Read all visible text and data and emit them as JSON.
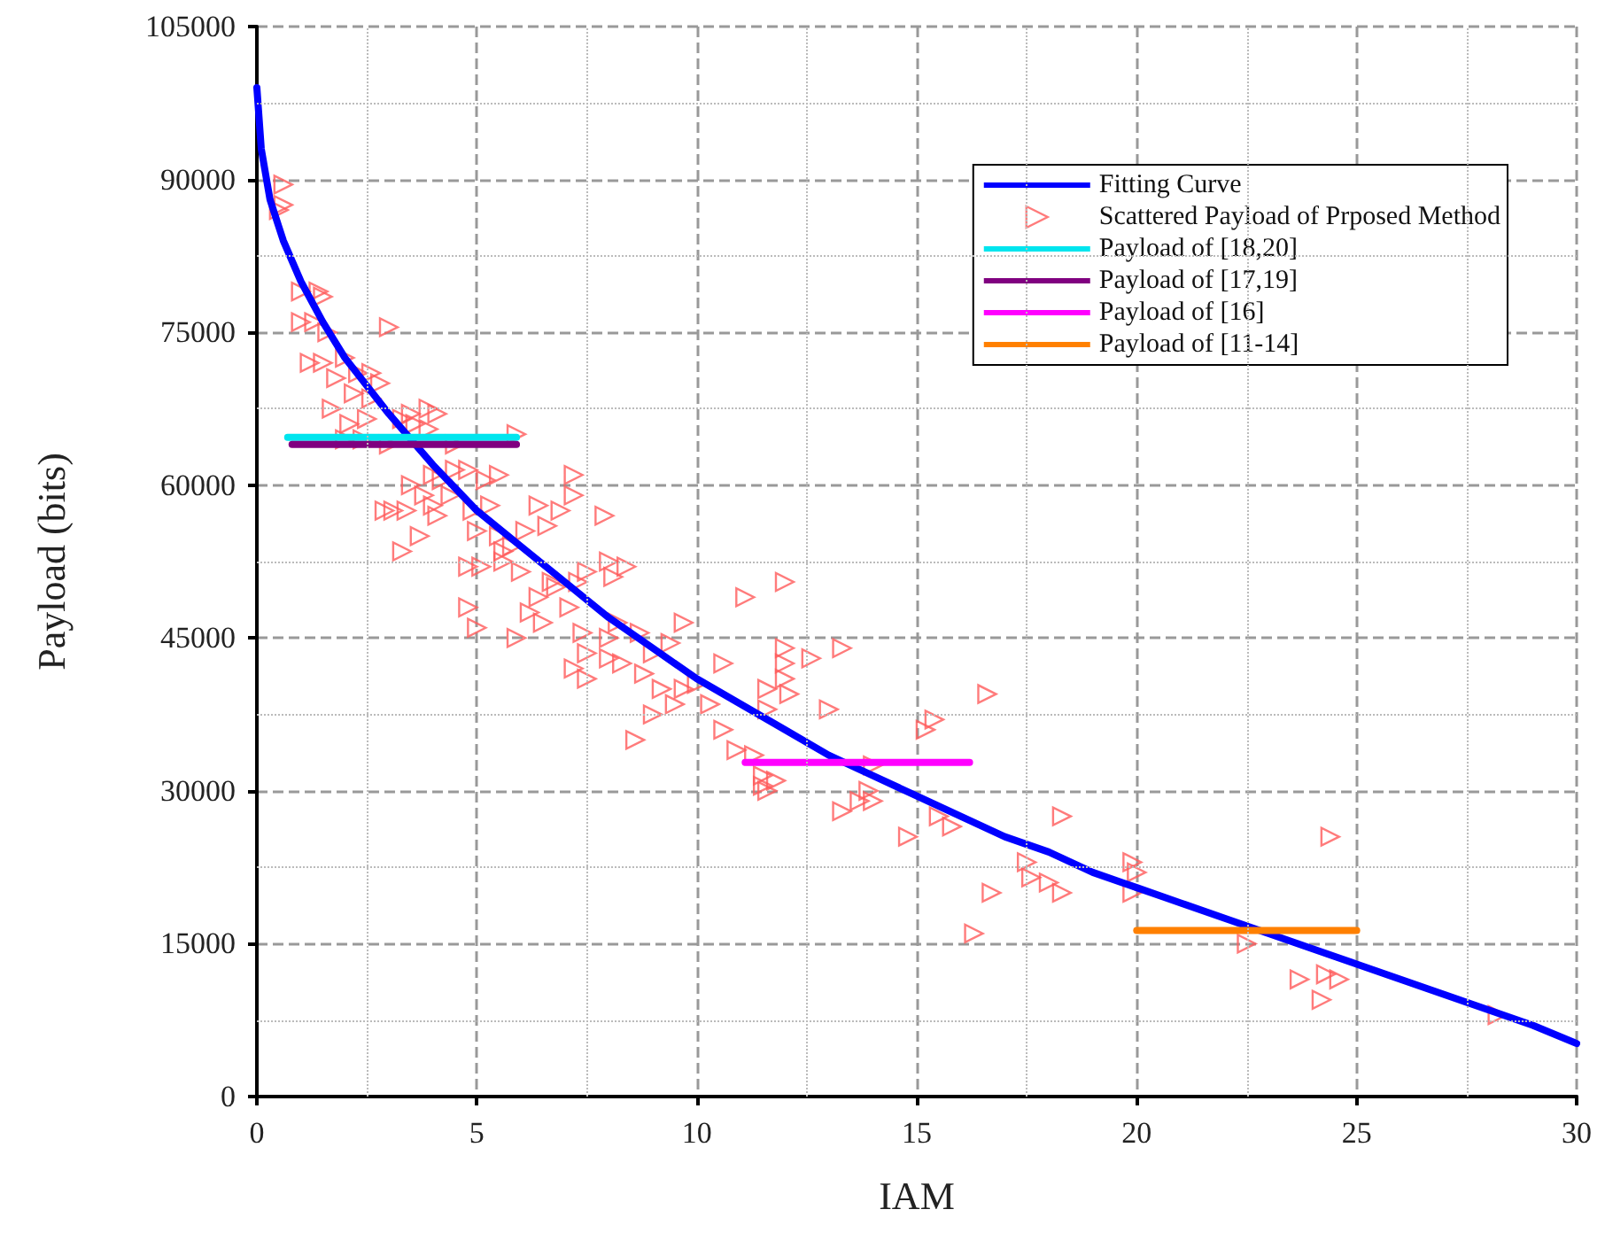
{
  "chart_data": {
    "type": "scatter",
    "xlabel": "IAM",
    "ylabel": "Payload (bits)",
    "xlim": [
      0,
      30
    ],
    "xticks": [
      0,
      5,
      10,
      15,
      20,
      25,
      30
    ],
    "ylim": [
      0,
      105000
    ],
    "yticks": [
      0,
      15000,
      30000,
      45000,
      60000,
      75000,
      90000,
      105000
    ],
    "grid": true,
    "legend": "top right",
    "series": [
      {
        "name": "Fitting Curve",
        "type": "line",
        "color": "#0000ff",
        "marker": "none",
        "line_style": "solid",
        "x": [
          0,
          0.1,
          0.3,
          0.6,
          1,
          1.5,
          2,
          3,
          4,
          5,
          6,
          7,
          8,
          9,
          10,
          11,
          12,
          13,
          14,
          15,
          16,
          17,
          18,
          19,
          20,
          21,
          22,
          23,
          24,
          25,
          26,
          27,
          28,
          29,
          30
        ],
        "values": [
          99000,
          93000,
          88000,
          84000,
          80000,
          76000,
          72500,
          67000,
          62000,
          57500,
          54000,
          50500,
          47000,
          44000,
          41000,
          38500,
          36000,
          33500,
          31500,
          29500,
          27500,
          25500,
          24000,
          22000,
          20500,
          19000,
          17500,
          16000,
          14500,
          13000,
          11500,
          10000,
          8500,
          7000,
          5200
        ]
      },
      {
        "name": "Scattered Payload of Prposed Method",
        "color": "#ff5a5a",
        "marker": "triangle",
        "x": [
          0.6,
          0.6,
          0.5,
          1.0,
          1.4,
          1.5,
          1.0,
          1.3,
          1.6,
          1.2,
          1.5,
          2.0,
          1.8,
          2.3,
          2.6,
          3.0,
          2.2,
          2.6,
          1.7,
          2.1,
          2.5,
          2.8,
          3.3,
          3.5,
          3.9,
          4.1,
          2.4,
          2.0,
          3.0,
          4.5,
          5.9,
          3.6,
          3.9,
          2.9,
          3.1,
          3.5,
          3.8,
          4.0,
          4.2,
          4.5,
          4.8,
          5.2,
          5.5,
          4.0,
          4.4,
          4.9,
          5.3,
          3.4,
          3.3,
          3.7,
          4.1,
          5.5,
          5.1,
          5.6,
          5.8,
          6.1,
          6.6,
          6.4,
          7.2,
          7.2,
          6.9,
          7.9,
          5.0,
          4.8,
          4.8,
          5.6,
          6.0,
          5.9,
          5.0,
          6.4,
          6.7,
          6.8,
          7.3,
          7.5,
          7.1,
          6.5,
          6.2,
          7.4,
          7.5,
          7.2,
          7.5,
          8.0,
          8.3,
          8.0,
          8.2,
          8.1,
          8.4,
          8.0,
          8.7,
          9.0,
          8.8,
          9.2,
          9.5,
          9.7,
          9.0,
          8.6,
          9.4,
          9.7,
          10.0,
          10.6,
          10.3,
          10.6,
          10.9,
          11.3,
          11.1,
          11.6,
          11.6,
          12.0,
          12.0,
          12.1,
          12.0,
          11.8,
          12.0,
          12.6,
          13.0,
          11.5,
          11.5,
          11.6,
          13.3,
          13.3,
          13.7,
          14.0,
          13.9,
          14.0,
          14.8,
          15.2,
          15.4,
          15.5,
          15.8,
          16.6,
          16.3,
          16.7,
          17.5,
          17.6,
          18.0,
          18.3,
          18.3,
          19.9,
          20.0,
          19.9,
          22.5,
          23.7,
          24.3,
          24.6,
          24.2,
          24.4,
          28.2
        ],
        "values": [
          89500,
          87500,
          87000,
          79000,
          79000,
          78500,
          76000,
          76000,
          75000,
          72000,
          72000,
          72500,
          70500,
          71000,
          71000,
          75500,
          69000,
          68500,
          67500,
          66000,
          66500,
          70000,
          66500,
          67000,
          67500,
          67000,
          64500,
          64500,
          64000,
          64000,
          65000,
          66000,
          65500,
          57500,
          57500,
          60000,
          59000,
          61000,
          60500,
          61500,
          61500,
          60500,
          61000,
          58000,
          59000,
          57500,
          58000,
          57500,
          53500,
          55000,
          57000,
          55000,
          52000,
          53500,
          54000,
          55500,
          56000,
          58000,
          61000,
          59000,
          57500,
          57000,
          55500,
          52000,
          48000,
          52500,
          51500,
          45000,
          46000,
          49000,
          50500,
          50000,
          50500,
          51500,
          48000,
          46500,
          47500,
          45500,
          43500,
          42000,
          41000,
          43000,
          42500,
          45000,
          46500,
          51000,
          52000,
          52500,
          45500,
          43500,
          41500,
          40000,
          38500,
          40000,
          37500,
          35000,
          44500,
          46500,
          40500,
          36000,
          38500,
          42500,
          34000,
          33500,
          49000,
          40000,
          38000,
          44000,
          41000,
          39500,
          42500,
          31000,
          50500,
          43000,
          38000,
          31500,
          30500,
          30000,
          44000,
          28000,
          29000,
          29000,
          30000,
          32500,
          25500,
          36000,
          37000,
          27500,
          26500,
          39500,
          16000,
          20000,
          23000,
          21500,
          21000,
          20000,
          27500,
          23000,
          22000,
          20000,
          15000,
          11500,
          12000,
          11500,
          9500,
          25500,
          8000
        ]
      },
      {
        "name": "Payload of [18,20]",
        "type": "line",
        "color": "#00e5ee",
        "marker": "none",
        "line_style": "solid",
        "x": [
          0.7,
          5.9
        ],
        "values": [
          64700,
          64700
        ]
      },
      {
        "name": "Payload of [17,19]",
        "type": "line",
        "color": "#800080",
        "marker": "none",
        "line_style": "solid",
        "x": [
          0.8,
          5.9
        ],
        "values": [
          64000,
          64000
        ]
      },
      {
        "name": "Payload of [16]",
        "type": "line",
        "color": "#ff00ff",
        "marker": "none",
        "line_style": "solid",
        "x": [
          11.1,
          16.2
        ],
        "values": [
          32800,
          32800
        ]
      },
      {
        "name": "Payload of [11-14]",
        "type": "line",
        "color": "#ff8000",
        "marker": "none",
        "line_style": "solid",
        "x": [
          20,
          25
        ],
        "values": [
          16300,
          16300
        ]
      }
    ]
  }
}
